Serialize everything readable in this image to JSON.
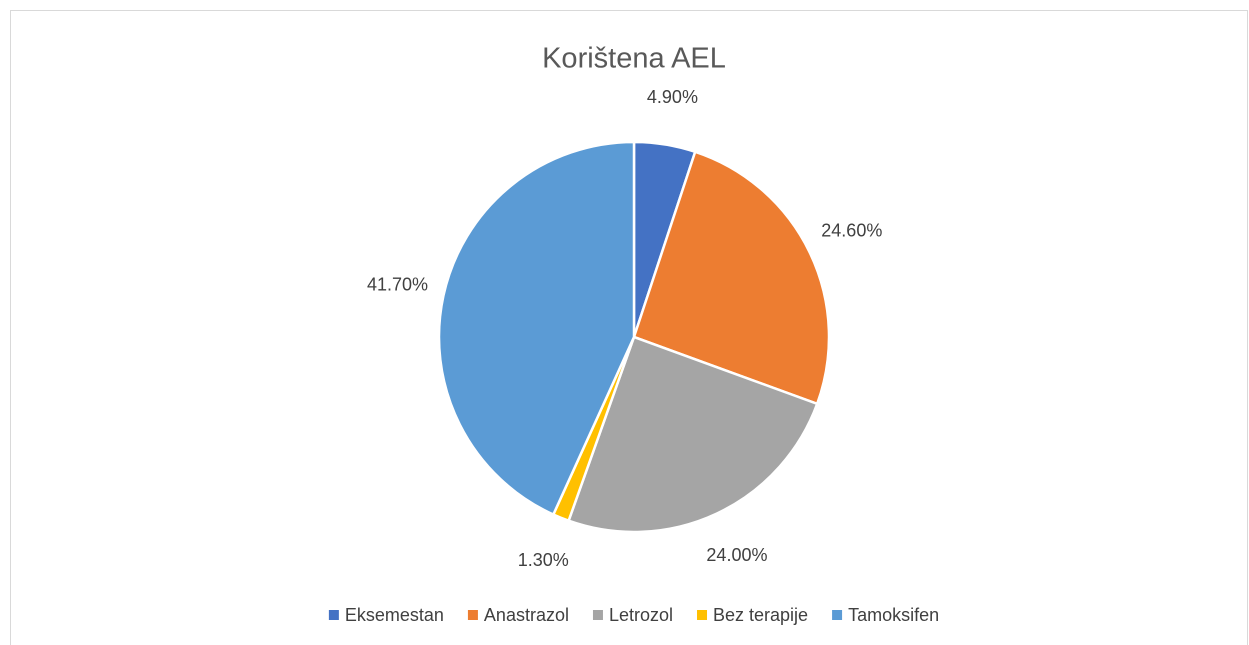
{
  "chart_data": {
    "type": "pie",
    "title": "Korištena AEL",
    "categories": [
      "Eksemestan",
      "Anastrazol",
      "Letrozol",
      "Bez terapije",
      "Tamoksifen"
    ],
    "values": [
      4.9,
      24.6,
      24.0,
      1.3,
      41.7
    ],
    "value_labels": [
      "4.90%",
      "24.60%",
      "24.00%",
      "1.30%",
      "41.70%"
    ],
    "colors": [
      "#4472c4",
      "#ed7d31",
      "#a5a5a5",
      "#ffc000",
      "#5b9bd5"
    ],
    "legend": "bottom"
  }
}
